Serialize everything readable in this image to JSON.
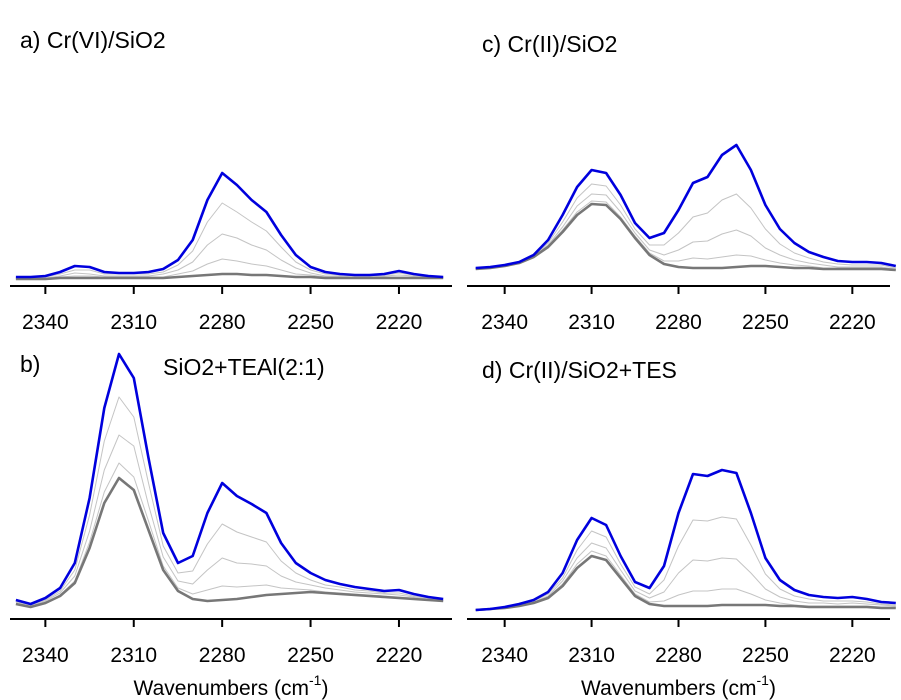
{
  "chart_data": [
    {
      "type": "line",
      "title": "a) Cr(VI)/SiO2",
      "x": [
        2350,
        2345,
        2340,
        2335,
        2330,
        2325,
        2320,
        2315,
        2310,
        2305,
        2300,
        2295,
        2290,
        2285,
        2280,
        2275,
        2270,
        2265,
        2260,
        2255,
        2250,
        2245,
        2240,
        2235,
        2230,
        2225,
        2220,
        2215,
        2210,
        2205
      ],
      "xlim": [
        2352,
        2202
      ],
      "xticks": [
        2340,
        2310,
        2280,
        2250,
        2220
      ],
      "ylim": [
        0,
        2
      ],
      "series": [
        {
          "color": "#c4c4c4",
          "values": [
            0.06,
            0.06,
            0.07,
            0.08,
            0.09,
            0.09,
            0.08,
            0.08,
            0.08,
            0.08,
            0.08,
            0.11,
            0.14,
            0.21,
            0.26,
            0.24,
            0.21,
            0.19,
            0.15,
            0.11,
            0.1,
            0.08,
            0.08,
            0.07,
            0.07,
            0.08,
            0.08,
            0.08,
            0.07,
            0.07
          ]
        },
        {
          "color": "#c4c4c4",
          "values": [
            0.07,
            0.07,
            0.07,
            0.09,
            0.12,
            0.11,
            0.09,
            0.09,
            0.09,
            0.09,
            0.11,
            0.15,
            0.23,
            0.4,
            0.51,
            0.47,
            0.4,
            0.35,
            0.25,
            0.17,
            0.12,
            0.09,
            0.09,
            0.08,
            0.08,
            0.09,
            0.1,
            0.09,
            0.08,
            0.07
          ]
        },
        {
          "color": "#c4c4c4",
          "values": [
            0.07,
            0.07,
            0.08,
            0.11,
            0.15,
            0.15,
            0.11,
            0.11,
            0.11,
            0.11,
            0.13,
            0.2,
            0.34,
            0.63,
            0.82,
            0.73,
            0.63,
            0.54,
            0.38,
            0.23,
            0.15,
            0.11,
            0.1,
            0.09,
            0.09,
            0.1,
            0.12,
            0.1,
            0.08,
            0.08
          ]
        },
        {
          "color": "#777777",
          "values": [
            0.06,
            0.06,
            0.06,
            0.07,
            0.07,
            0.07,
            0.07,
            0.07,
            0.07,
            0.07,
            0.07,
            0.08,
            0.09,
            0.1,
            0.11,
            0.11,
            0.1,
            0.1,
            0.09,
            0.08,
            0.08,
            0.07,
            0.07,
            0.07,
            0.07,
            0.07,
            0.07,
            0.07,
            0.07,
            0.07
          ]
        },
        {
          "color": "#0000dd",
          "values": [
            0.08,
            0.08,
            0.09,
            0.13,
            0.19,
            0.18,
            0.13,
            0.12,
            0.12,
            0.13,
            0.16,
            0.25,
            0.45,
            0.85,
            1.12,
            1.0,
            0.85,
            0.73,
            0.5,
            0.3,
            0.18,
            0.13,
            0.11,
            0.1,
            0.1,
            0.11,
            0.14,
            0.11,
            0.09,
            0.08
          ]
        }
      ]
    },
    {
      "type": "line",
      "panel_label": "b)",
      "title": "SiO2+TEAl(2:1)",
      "x_label": "Wavenumbers (cm",
      "x_label_superscript": "-1",
      "x_label_suffix": ")",
      "x": [
        2350,
        2345,
        2340,
        2335,
        2330,
        2325,
        2320,
        2315,
        2310,
        2305,
        2300,
        2295,
        2290,
        2285,
        2280,
        2275,
        2270,
        2265,
        2260,
        2255,
        2250,
        2245,
        2240,
        2235,
        2230,
        2225,
        2220,
        2215,
        2210,
        2205
      ],
      "xlim": [
        2352,
        2202
      ],
      "xticks": [
        2340,
        2310,
        2280,
        2250,
        2220
      ],
      "ylim": [
        0,
        2.7
      ],
      "series": [
        {
          "color": "#c4c4c4",
          "values": [
            0.14,
            0.11,
            0.15,
            0.23,
            0.37,
            0.76,
            1.26,
            1.55,
            1.41,
            0.97,
            0.52,
            0.3,
            0.24,
            0.28,
            0.32,
            0.31,
            0.32,
            0.33,
            0.3,
            0.29,
            0.28,
            0.26,
            0.25,
            0.24,
            0.23,
            0.22,
            0.21,
            0.2,
            0.18,
            0.17
          ]
        },
        {
          "color": "#c4c4c4",
          "values": [
            0.16,
            0.12,
            0.17,
            0.25,
            0.42,
            0.87,
            1.48,
            1.83,
            1.72,
            1.13,
            0.61,
            0.37,
            0.34,
            0.48,
            0.6,
            0.55,
            0.54,
            0.52,
            0.42,
            0.36,
            0.33,
            0.3,
            0.28,
            0.26,
            0.25,
            0.24,
            0.23,
            0.21,
            0.19,
            0.18
          ]
        },
        {
          "color": "#c4c4c4",
          "values": [
            0.17,
            0.13,
            0.18,
            0.27,
            0.48,
            1.03,
            1.77,
            2.21,
            2.01,
            1.35,
            0.72,
            0.45,
            0.47,
            0.74,
            0.94,
            0.86,
            0.81,
            0.76,
            0.57,
            0.45,
            0.38,
            0.33,
            0.31,
            0.28,
            0.27,
            0.25,
            0.25,
            0.22,
            0.2,
            0.18
          ]
        },
        {
          "color": "#777777",
          "values": [
            0.14,
            0.11,
            0.15,
            0.22,
            0.35,
            0.7,
            1.15,
            1.4,
            1.28,
            0.88,
            0.48,
            0.27,
            0.19,
            0.17,
            0.18,
            0.19,
            0.21,
            0.23,
            0.24,
            0.25,
            0.26,
            0.25,
            0.24,
            0.23,
            0.22,
            0.21,
            0.2,
            0.19,
            0.18,
            0.17
          ]
        },
        {
          "color": "#0000dd",
          "values": [
            0.18,
            0.14,
            0.2,
            0.3,
            0.55,
            1.2,
            2.1,
            2.64,
            2.4,
            1.6,
            0.85,
            0.55,
            0.62,
            1.05,
            1.35,
            1.22,
            1.14,
            1.05,
            0.75,
            0.55,
            0.45,
            0.38,
            0.34,
            0.31,
            0.29,
            0.27,
            0.28,
            0.24,
            0.21,
            0.19
          ]
        }
      ]
    },
    {
      "type": "line",
      "title": "c) Cr(II)/SiO2",
      "x": [
        2350,
        2345,
        2340,
        2335,
        2330,
        2325,
        2320,
        2315,
        2310,
        2305,
        2300,
        2295,
        2290,
        2285,
        2280,
        2275,
        2270,
        2265,
        2260,
        2255,
        2250,
        2245,
        2240,
        2235,
        2230,
        2225,
        2220,
        2215,
        2210,
        2205
      ],
      "xlim": [
        2353,
        2207
      ],
      "xticks": [
        2340,
        2310,
        2280,
        2250,
        2220
      ],
      "ylim": [
        0,
        2
      ],
      "series": [
        {
          "color": "#c4c4c4",
          "values": [
            0.16,
            0.17,
            0.19,
            0.22,
            0.28,
            0.39,
            0.55,
            0.73,
            0.84,
            0.83,
            0.68,
            0.49,
            0.32,
            0.24,
            0.24,
            0.27,
            0.26,
            0.28,
            0.3,
            0.29,
            0.25,
            0.22,
            0.2,
            0.19,
            0.17,
            0.17,
            0.17,
            0.17,
            0.17,
            0.15
          ]
        },
        {
          "color": "#c4c4c4",
          "values": [
            0.16,
            0.17,
            0.19,
            0.22,
            0.29,
            0.4,
            0.58,
            0.79,
            0.91,
            0.9,
            0.73,
            0.52,
            0.35,
            0.3,
            0.35,
            0.43,
            0.44,
            0.51,
            0.55,
            0.49,
            0.37,
            0.3,
            0.25,
            0.22,
            0.2,
            0.18,
            0.18,
            0.18,
            0.18,
            0.16
          ]
        },
        {
          "color": "#c4c4c4",
          "values": [
            0.17,
            0.18,
            0.2,
            0.23,
            0.29,
            0.42,
            0.63,
            0.87,
            1.01,
            0.99,
            0.8,
            0.56,
            0.4,
            0.4,
            0.52,
            0.68,
            0.72,
            0.85,
            0.91,
            0.77,
            0.56,
            0.41,
            0.32,
            0.27,
            0.23,
            0.21,
            0.2,
            0.2,
            0.2,
            0.17
          ]
        },
        {
          "color": "#777777",
          "values": [
            0.16,
            0.17,
            0.19,
            0.22,
            0.28,
            0.38,
            0.53,
            0.7,
            0.81,
            0.8,
            0.66,
            0.47,
            0.3,
            0.21,
            0.18,
            0.17,
            0.17,
            0.17,
            0.18,
            0.19,
            0.19,
            0.18,
            0.17,
            0.17,
            0.16,
            0.16,
            0.16,
            0.16,
            0.16,
            0.15
          ]
        },
        {
          "color": "#0000dd",
          "values": [
            0.17,
            0.18,
            0.2,
            0.23,
            0.3,
            0.45,
            0.7,
            0.98,
            1.15,
            1.12,
            0.9,
            0.62,
            0.47,
            0.52,
            0.75,
            1.02,
            1.08,
            1.3,
            1.4,
            1.15,
            0.8,
            0.56,
            0.42,
            0.33,
            0.28,
            0.24,
            0.23,
            0.23,
            0.22,
            0.19
          ]
        }
      ]
    },
    {
      "type": "line",
      "title": "d) Cr(II)/SiO2+TES",
      "x_label": "Wavenumbers (cm",
      "x_label_superscript": "-1",
      "x_label_suffix": ")",
      "x": [
        2350,
        2345,
        2340,
        2335,
        2330,
        2325,
        2320,
        2315,
        2310,
        2305,
        2300,
        2295,
        2290,
        2285,
        2280,
        2275,
        2270,
        2265,
        2260,
        2255,
        2250,
        2245,
        2240,
        2235,
        2230,
        2225,
        2220,
        2215,
        2210,
        2205
      ],
      "xlim": [
        2353,
        2207
      ],
      "xticks": [
        2340,
        2310,
        2280,
        2250,
        2220
      ],
      "ylim": [
        0,
        2.7
      ],
      "series": [
        {
          "color": "#c4c4c4",
          "values": [
            0.08,
            0.09,
            0.1,
            0.12,
            0.15,
            0.21,
            0.34,
            0.54,
            0.67,
            0.62,
            0.43,
            0.24,
            0.16,
            0.17,
            0.23,
            0.27,
            0.27,
            0.29,
            0.29,
            0.24,
            0.18,
            0.15,
            0.13,
            0.12,
            0.12,
            0.12,
            0.12,
            0.12,
            0.11,
            0.11
          ]
        },
        {
          "color": "#c4c4c4",
          "values": [
            0.08,
            0.09,
            0.1,
            0.13,
            0.16,
            0.22,
            0.37,
            0.6,
            0.75,
            0.7,
            0.48,
            0.27,
            0.2,
            0.26,
            0.45,
            0.58,
            0.57,
            0.6,
            0.59,
            0.45,
            0.29,
            0.21,
            0.17,
            0.15,
            0.15,
            0.14,
            0.15,
            0.14,
            0.13,
            0.12
          ]
        },
        {
          "color": "#c4c4c4",
          "values": [
            0.08,
            0.09,
            0.11,
            0.13,
            0.17,
            0.24,
            0.4,
            0.68,
            0.87,
            0.81,
            0.54,
            0.31,
            0.24,
            0.38,
            0.72,
            0.98,
            0.97,
            1.01,
            0.99,
            0.73,
            0.44,
            0.29,
            0.22,
            0.19,
            0.17,
            0.17,
            0.17,
            0.16,
            0.14,
            0.13
          ]
        },
        {
          "color": "#777777",
          "values": [
            0.08,
            0.09,
            0.1,
            0.12,
            0.15,
            0.2,
            0.32,
            0.5,
            0.62,
            0.58,
            0.4,
            0.22,
            0.14,
            0.12,
            0.12,
            0.12,
            0.12,
            0.13,
            0.13,
            0.13,
            0.13,
            0.12,
            0.12,
            0.11,
            0.11,
            0.11,
            0.11,
            0.11,
            0.1,
            0.1
          ]
        },
        {
          "color": "#0000dd",
          "values": [
            0.08,
            0.09,
            0.11,
            0.14,
            0.18,
            0.26,
            0.45,
            0.78,
            1.0,
            0.93,
            0.62,
            0.36,
            0.3,
            0.52,
            1.05,
            1.44,
            1.42,
            1.48,
            1.45,
            1.05,
            0.6,
            0.38,
            0.28,
            0.23,
            0.21,
            0.2,
            0.21,
            0.19,
            0.16,
            0.15
          ]
        }
      ]
    }
  ]
}
